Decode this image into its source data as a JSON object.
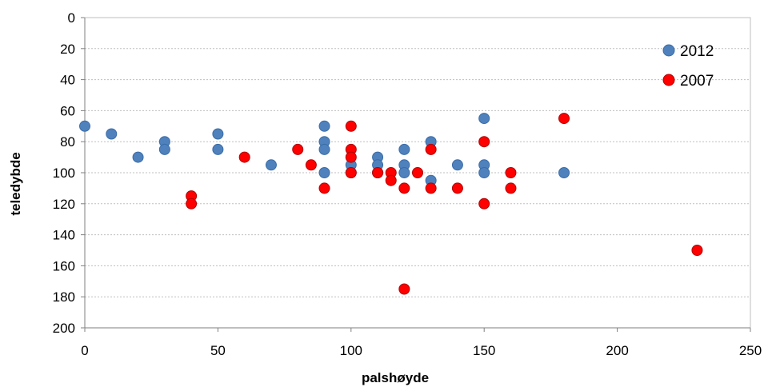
{
  "chart_data": {
    "type": "scatter",
    "xlabel": "palshøyde",
    "ylabel": "teledybde",
    "xlim": [
      0,
      250
    ],
    "ylim": [
      0,
      200
    ],
    "y_inverted": true,
    "xticks": [
      "0",
      "50",
      "100",
      "150",
      "200",
      "250"
    ],
    "yticks": [
      "0",
      "20",
      "40",
      "60",
      "80",
      "100",
      "120",
      "140",
      "160",
      "180",
      "200"
    ],
    "grid": "horizontal",
    "legend_position": "top-right",
    "series": [
      {
        "name": "2012",
        "color": "#4f81bd",
        "points": [
          [
            0,
            70
          ],
          [
            10,
            75
          ],
          [
            20,
            90
          ],
          [
            30,
            80
          ],
          [
            30,
            85
          ],
          [
            50,
            75
          ],
          [
            50,
            85
          ],
          [
            70,
            95
          ],
          [
            90,
            70
          ],
          [
            90,
            80
          ],
          [
            90,
            85
          ],
          [
            90,
            100
          ],
          [
            100,
            95
          ],
          [
            100,
            100
          ],
          [
            110,
            90
          ],
          [
            110,
            95
          ],
          [
            110,
            100
          ],
          [
            120,
            85
          ],
          [
            120,
            95
          ],
          [
            120,
            100
          ],
          [
            130,
            80
          ],
          [
            130,
            105
          ],
          [
            140,
            95
          ],
          [
            150,
            65
          ],
          [
            150,
            95
          ],
          [
            150,
            100
          ],
          [
            180,
            100
          ]
        ]
      },
      {
        "name": "2007",
        "color": "#ff0000",
        "points": [
          [
            40,
            115
          ],
          [
            40,
            120
          ],
          [
            60,
            90
          ],
          [
            80,
            85
          ],
          [
            85,
            95
          ],
          [
            90,
            110
          ],
          [
            100,
            70
          ],
          [
            100,
            85
          ],
          [
            100,
            90
          ],
          [
            100,
            100
          ],
          [
            110,
            100
          ],
          [
            115,
            100
          ],
          [
            115,
            105
          ],
          [
            120,
            110
          ],
          [
            120,
            175
          ],
          [
            125,
            100
          ],
          [
            130,
            85
          ],
          [
            130,
            110
          ],
          [
            140,
            110
          ],
          [
            150,
            80
          ],
          [
            150,
            120
          ],
          [
            160,
            100
          ],
          [
            160,
            110
          ],
          [
            180,
            65
          ],
          [
            230,
            150
          ]
        ]
      }
    ]
  }
}
